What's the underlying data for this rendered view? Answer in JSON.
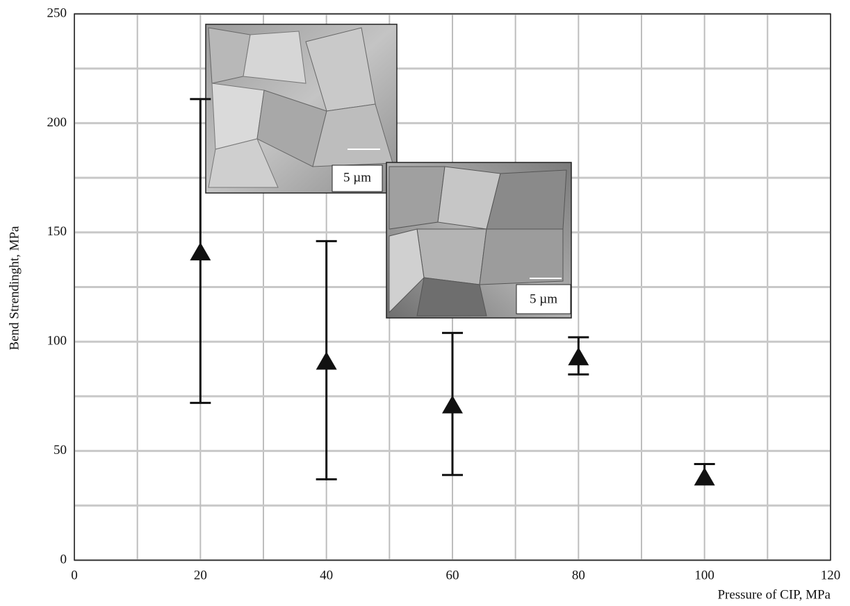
{
  "chart_data": {
    "type": "scatter",
    "x_label": "Pressure of CIP, MPa",
    "y_label": "Bend Strendinght, MPa",
    "x": [
      20,
      40,
      60,
      80,
      100
    ],
    "values": [
      141,
      91,
      71,
      93,
      38
    ],
    "upper": [
      211,
      146,
      104,
      102,
      44
    ],
    "lower": [
      72,
      37,
      39,
      85,
      null
    ],
    "color": "#111111",
    "xlim": [
      0,
      120
    ],
    "xticks": [
      0,
      20,
      40,
      60,
      80,
      100,
      120
    ],
    "xgrid": [
      10,
      30,
      50,
      70,
      90,
      110
    ],
    "ylim": [
      0,
      250
    ],
    "yticks": [
      0,
      50,
      100,
      150,
      200,
      250
    ],
    "ygrid": [
      25,
      75,
      125,
      175,
      225
    ],
    "grid": true,
    "annotations": [
      "5 µm",
      "5 µm"
    ]
  }
}
